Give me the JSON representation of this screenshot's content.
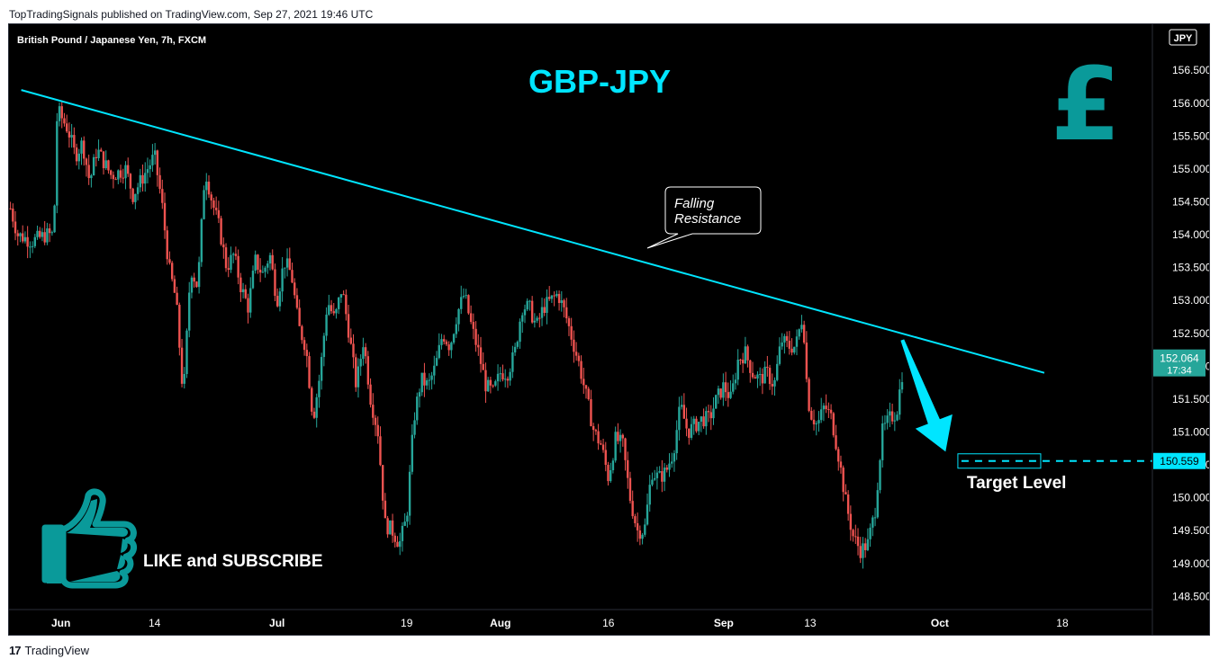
{
  "header": {
    "publisher_line": "TopTradingSignals published on TradingView.com, Sep 27, 2021 19:46 UTC"
  },
  "footer": {
    "logo_text": "TradingView"
  },
  "colors": {
    "up": "#26a69a",
    "down": "#ef5350",
    "accent": "#00e5ff",
    "teal": "#0a9a9a",
    "price_tag": "#26a69a",
    "text": "#ffffff"
  },
  "chart_data": {
    "type": "candlestick",
    "symbol_line": "British Pound / Japanese Yen, 7h, FXCM",
    "title": "GBP-JPY",
    "currency_label": "JPY",
    "ylim": [
      148.3,
      157.2
    ],
    "yticks": [
      148.5,
      149.0,
      149.5,
      150.0,
      150.5,
      151.0,
      151.5,
      152.0,
      152.5,
      153.0,
      153.5,
      154.0,
      154.5,
      155.0,
      155.5,
      156.0,
      156.5
    ],
    "ytick_labels": [
      "148.500",
      "149.000",
      "149.500",
      "150.000",
      "150.500",
      "151.000",
      "151.500",
      "152.000",
      "152.500",
      "153.000",
      "153.500",
      "154.000",
      "154.500",
      "155.000",
      "155.500",
      "156.000",
      "156.500"
    ],
    "xticks": [
      {
        "label": "Jun",
        "day": 1,
        "bold": true
      },
      {
        "label": "14",
        "day": 14,
        "bold": false
      },
      {
        "label": "Jul",
        "day": 31,
        "bold": true
      },
      {
        "label": "19",
        "day": 49,
        "bold": false
      },
      {
        "label": "Aug",
        "day": 62,
        "bold": true
      },
      {
        "label": "16",
        "day": 77,
        "bold": false
      },
      {
        "label": "Sep",
        "day": 93,
        "bold": true
      },
      {
        "label": "13",
        "day": 105,
        "bold": false
      },
      {
        "label": "Oct",
        "day": 123,
        "bold": true
      },
      {
        "label": "18",
        "day": 140,
        "bold": false
      }
    ],
    "x_range_days": [
      -6.2,
      152.5
    ],
    "price_path": [
      {
        "day": -6,
        "price": 154.4
      },
      {
        "day": -5,
        "price": 154.0
      },
      {
        "day": -3,
        "price": 153.9
      },
      {
        "day": -1,
        "price": 154.0
      },
      {
        "day": 0,
        "price": 154.0
      },
      {
        "day": 0.5,
        "price": 155.9
      },
      {
        "day": 2,
        "price": 155.6
      },
      {
        "day": 3,
        "price": 155.2
      },
      {
        "day": 4,
        "price": 155.4
      },
      {
        "day": 5,
        "price": 154.8
      },
      {
        "day": 6,
        "price": 155.3
      },
      {
        "day": 7,
        "price": 155.1
      },
      {
        "day": 8,
        "price": 154.9
      },
      {
        "day": 10,
        "price": 155.0
      },
      {
        "day": 11,
        "price": 154.6
      },
      {
        "day": 13,
        "price": 155.0
      },
      {
        "day": 14,
        "price": 155.2
      },
      {
        "day": 15,
        "price": 154.5
      },
      {
        "day": 16,
        "price": 153.5
      },
      {
        "day": 17,
        "price": 153.0
      },
      {
        "day": 18,
        "price": 151.5
      },
      {
        "day": 19,
        "price": 153.5
      },
      {
        "day": 20,
        "price": 153.2
      },
      {
        "day": 21,
        "price": 155.0
      },
      {
        "day": 22,
        "price": 154.5
      },
      {
        "day": 23,
        "price": 154.1
      },
      {
        "day": 24,
        "price": 153.5
      },
      {
        "day": 25,
        "price": 153.7
      },
      {
        "day": 26,
        "price": 153.2
      },
      {
        "day": 27,
        "price": 152.9
      },
      {
        "day": 28,
        "price": 153.6
      },
      {
        "day": 29,
        "price": 153.4
      },
      {
        "day": 30,
        "price": 153.7
      },
      {
        "day": 31,
        "price": 153.0
      },
      {
        "day": 32,
        "price": 153.6
      },
      {
        "day": 33,
        "price": 153.4
      },
      {
        "day": 34,
        "price": 152.6
      },
      {
        "day": 35,
        "price": 152.3
      },
      {
        "day": 36,
        "price": 151.2
      },
      {
        "day": 37,
        "price": 151.9
      },
      {
        "day": 38,
        "price": 153.0
      },
      {
        "day": 39,
        "price": 152.7
      },
      {
        "day": 40,
        "price": 153.2
      },
      {
        "day": 41,
        "price": 152.5
      },
      {
        "day": 42,
        "price": 151.7
      },
      {
        "day": 43,
        "price": 152.4
      },
      {
        "day": 44,
        "price": 151.5
      },
      {
        "day": 45,
        "price": 151.0
      },
      {
        "day": 46,
        "price": 149.6
      },
      {
        "day": 47,
        "price": 149.5
      },
      {
        "day": 48,
        "price": 149.3
      },
      {
        "day": 49,
        "price": 149.7
      },
      {
        "day": 50,
        "price": 151.2
      },
      {
        "day": 51,
        "price": 151.8
      },
      {
        "day": 52,
        "price": 151.7
      },
      {
        "day": 53,
        "price": 152.0
      },
      {
        "day": 54,
        "price": 152.5
      },
      {
        "day": 55,
        "price": 152.3
      },
      {
        "day": 56,
        "price": 152.8
      },
      {
        "day": 57,
        "price": 153.1
      },
      {
        "day": 58,
        "price": 152.6
      },
      {
        "day": 59,
        "price": 152.2
      },
      {
        "day": 60,
        "price": 151.7
      },
      {
        "day": 61,
        "price": 151.6
      },
      {
        "day": 62,
        "price": 151.9
      },
      {
        "day": 63,
        "price": 151.9
      },
      {
        "day": 64,
        "price": 152.2
      },
      {
        "day": 65,
        "price": 152.9
      },
      {
        "day": 66,
        "price": 152.9
      },
      {
        "day": 67,
        "price": 152.6
      },
      {
        "day": 68,
        "price": 152.9
      },
      {
        "day": 69,
        "price": 153.0
      },
      {
        "day": 70,
        "price": 153.1
      },
      {
        "day": 71,
        "price": 152.8
      },
      {
        "day": 72,
        "price": 152.4
      },
      {
        "day": 73,
        "price": 152.0
      },
      {
        "day": 74,
        "price": 151.5
      },
      {
        "day": 75,
        "price": 151.0
      },
      {
        "day": 76,
        "price": 150.8
      },
      {
        "day": 77,
        "price": 150.3
      },
      {
        "day": 78,
        "price": 150.9
      },
      {
        "day": 79,
        "price": 150.8
      },
      {
        "day": 80,
        "price": 150.0
      },
      {
        "day": 81,
        "price": 149.5
      },
      {
        "day": 82,
        "price": 149.5
      },
      {
        "day": 83,
        "price": 150.4
      },
      {
        "day": 84,
        "price": 150.3
      },
      {
        "day": 85,
        "price": 150.4
      },
      {
        "day": 86,
        "price": 150.7
      },
      {
        "day": 87,
        "price": 151.4
      },
      {
        "day": 88,
        "price": 151.0
      },
      {
        "day": 89,
        "price": 151.1
      },
      {
        "day": 90,
        "price": 151.2
      },
      {
        "day": 91,
        "price": 151.2
      },
      {
        "day": 92,
        "price": 151.5
      },
      {
        "day": 93,
        "price": 151.7
      },
      {
        "day": 94,
        "price": 151.5
      },
      {
        "day": 95,
        "price": 152.1
      },
      {
        "day": 96,
        "price": 152.2
      },
      {
        "day": 97,
        "price": 151.9
      },
      {
        "day": 98,
        "price": 151.8
      },
      {
        "day": 99,
        "price": 151.9
      },
      {
        "day": 100,
        "price": 151.7
      },
      {
        "day": 101,
        "price": 152.4
      },
      {
        "day": 102,
        "price": 152.3
      },
      {
        "day": 103,
        "price": 152.3
      },
      {
        "day": 104,
        "price": 152.8
      },
      {
        "day": 104.6,
        "price": 151.6
      },
      {
        "day": 105,
        "price": 151.3
      },
      {
        "day": 106,
        "price": 151.1
      },
      {
        "day": 107,
        "price": 151.4
      },
      {
        "day": 108,
        "price": 151.2
      },
      {
        "day": 109,
        "price": 150.6
      },
      {
        "day": 110,
        "price": 149.9
      },
      {
        "day": 111,
        "price": 149.4
      },
      {
        "day": 112,
        "price": 149.2
      },
      {
        "day": 113,
        "price": 149.3
      },
      {
        "day": 114,
        "price": 149.8
      },
      {
        "day": 115,
        "price": 151.0
      },
      {
        "day": 116,
        "price": 151.2
      },
      {
        "day": 117,
        "price": 151.3
      },
      {
        "day": 118,
        "price": 152.06
      }
    ],
    "trendline": {
      "label": "Falling Resistance",
      "start": {
        "day": -4.5,
        "price": 156.2
      },
      "end": {
        "day": 137.5,
        "price": 151.9
      }
    },
    "target": {
      "label": "Target Level",
      "price": 150.559,
      "price_label": "150.559",
      "start_day": 125.5,
      "end_day": 137
    },
    "arrow": {
      "from": {
        "day": 117.8,
        "price": 152.4
      },
      "to": {
        "day": 123.8,
        "price": 150.7
      }
    },
    "last_price": {
      "value": 152.064,
      "label": "152.064",
      "countdown": "17:34"
    },
    "like_label": "LIKE and SUBSCRIBE",
    "pound_symbol": "£"
  }
}
